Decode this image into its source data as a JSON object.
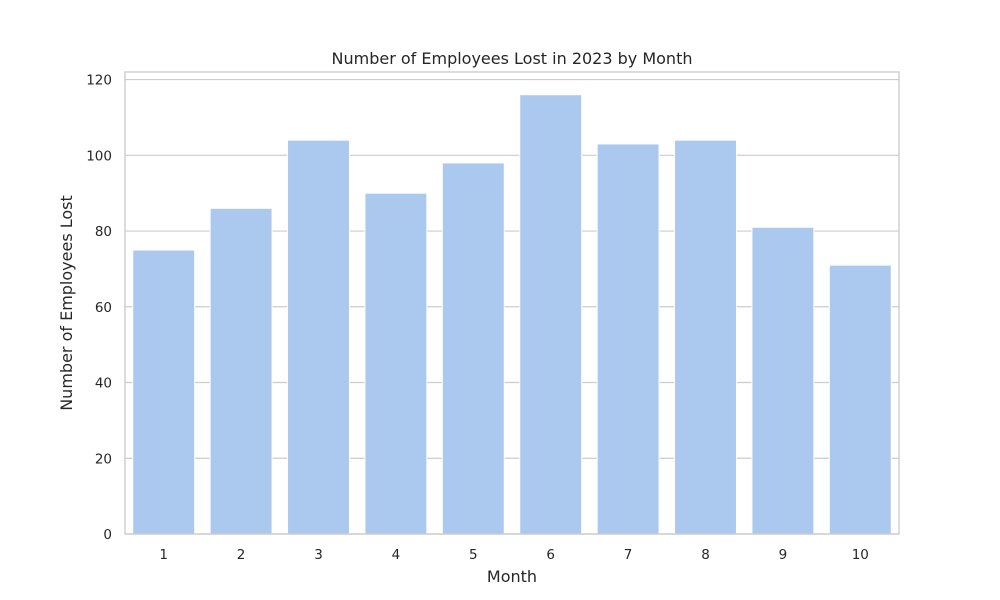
{
  "chart_data": {
    "type": "bar",
    "title": "Number of Employees Lost in 2023 by Month",
    "xlabel": "Month",
    "ylabel": "Number of Employees Lost",
    "categories": [
      "1",
      "2",
      "3",
      "4",
      "5",
      "6",
      "7",
      "8",
      "9",
      "10"
    ],
    "values": [
      75,
      86,
      104,
      90,
      98,
      116,
      103,
      104,
      81,
      71
    ],
    "ylim": [
      0,
      122
    ],
    "yticks": [
      0,
      20,
      40,
      60,
      80,
      100,
      120
    ],
    "grid": "y-axis horizontal lines",
    "colors": {
      "bar": "#abc9ee",
      "grid": "#cccccc",
      "text": "#262626"
    }
  }
}
